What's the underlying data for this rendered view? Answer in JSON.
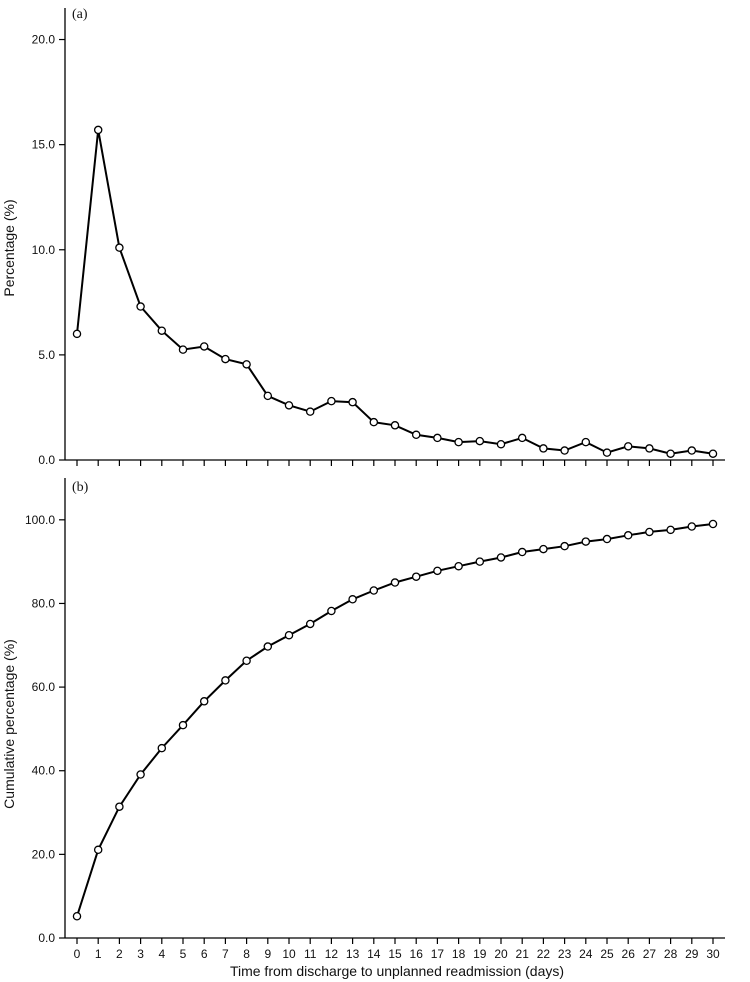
{
  "chart_data": [
    {
      "type": "line",
      "panel_label": "(a)",
      "ylabel": "Percentage (%)",
      "ylim": [
        0,
        21.5
      ],
      "yticks": [
        "0.0",
        "5.0",
        "10.0",
        "15.0",
        "20.0"
      ],
      "x": [
        0,
        1,
        2,
        3,
        4,
        5,
        6,
        7,
        8,
        9,
        10,
        11,
        12,
        13,
        14,
        15,
        16,
        17,
        18,
        19,
        20,
        21,
        22,
        23,
        24,
        25,
        26,
        27,
        28,
        29,
        30
      ],
      "values": [
        6.0,
        15.7,
        10.1,
        7.3,
        6.15,
        5.25,
        5.4,
        4.8,
        4.55,
        3.05,
        2.6,
        2.3,
        2.8,
        2.75,
        1.8,
        1.65,
        1.2,
        1.05,
        0.85,
        0.9,
        0.75,
        1.05,
        0.55,
        0.45,
        0.85,
        0.35,
        0.65,
        0.55,
        0.3,
        0.45,
        0.3
      ],
      "marker": "open-circle",
      "line_color": "#000000"
    },
    {
      "type": "line",
      "panel_label": "(b)",
      "ylabel": "Cumulative percentage (%)",
      "xlabel": "Time from discharge to unplanned readmission (days)",
      "ylim": [
        0,
        110
      ],
      "yticks": [
        "0.0",
        "20.0",
        "40.0",
        "60.0",
        "80.0",
        "100.0"
      ],
      "xticks": [
        "0",
        "1",
        "2",
        "3",
        "4",
        "5",
        "6",
        "7",
        "8",
        "9",
        "10",
        "11",
        "12",
        "13",
        "14",
        "15",
        "16",
        "17",
        "18",
        "19",
        "20",
        "21",
        "22",
        "23",
        "24",
        "25",
        "26",
        "27",
        "28",
        "29",
        "30"
      ],
      "x": [
        0,
        1,
        2,
        3,
        4,
        5,
        6,
        7,
        8,
        9,
        10,
        11,
        12,
        13,
        14,
        15,
        16,
        17,
        18,
        19,
        20,
        21,
        22,
        23,
        24,
        25,
        26,
        27,
        28,
        29,
        30
      ],
      "values": [
        5.2,
        21.1,
        31.4,
        39.1,
        45.4,
        50.9,
        56.6,
        61.6,
        66.3,
        69.7,
        72.4,
        75.1,
        78.2,
        81.0,
        83.1,
        85.0,
        86.4,
        87.8,
        88.9,
        90.0,
        91.0,
        92.3,
        93.0,
        93.7,
        94.8,
        95.4,
        96.3,
        97.1,
        97.6,
        98.4,
        99.0
      ],
      "marker": "open-circle",
      "line_color": "#000000"
    }
  ]
}
